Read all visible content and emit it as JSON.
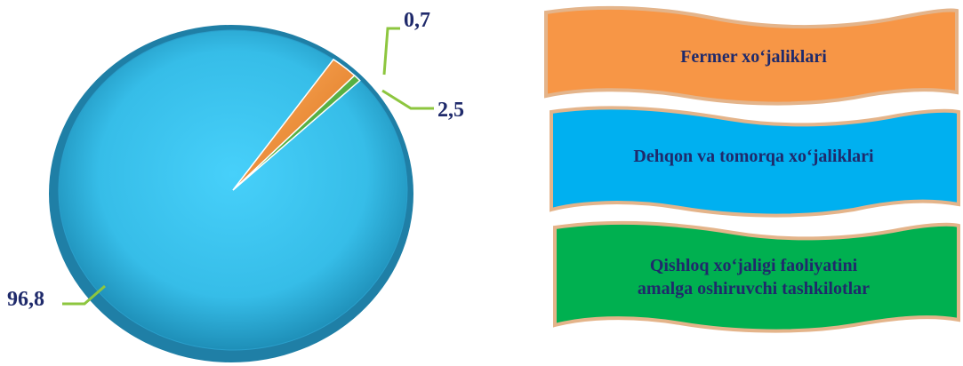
{
  "chart_data": {
    "type": "pie",
    "slices": [
      {
        "label": "Dehqon va tomorqa xo‘jaliklari",
        "value": 96.8,
        "value_label": "96,8",
        "color": "#3cc3ec"
      },
      {
        "label": "Fermer xo‘jaliklari",
        "value": 2.5,
        "value_label": "2,5",
        "color": "#f7944a"
      },
      {
        "label": "Qishloq xo‘jaligi faoliyatini amalga oshiruvchi tashkilotlar",
        "value": 0.7,
        "value_label": "0,7",
        "color": "#28b14c"
      }
    ],
    "legend": {
      "placement": "right",
      "items": [
        {
          "text": "Fermer xo‘jaliklari",
          "color": "#f7944a"
        },
        {
          "text": "Dehqon va tomorqa xo‘jaliklari",
          "color": "#00b0f0"
        },
        {
          "text_lines": [
            "Qishloq xo‘jaligi faoliyatini",
            "amalga oshiruvchi tashkilotlar"
          ],
          "color": "#00b050"
        }
      ]
    }
  }
}
